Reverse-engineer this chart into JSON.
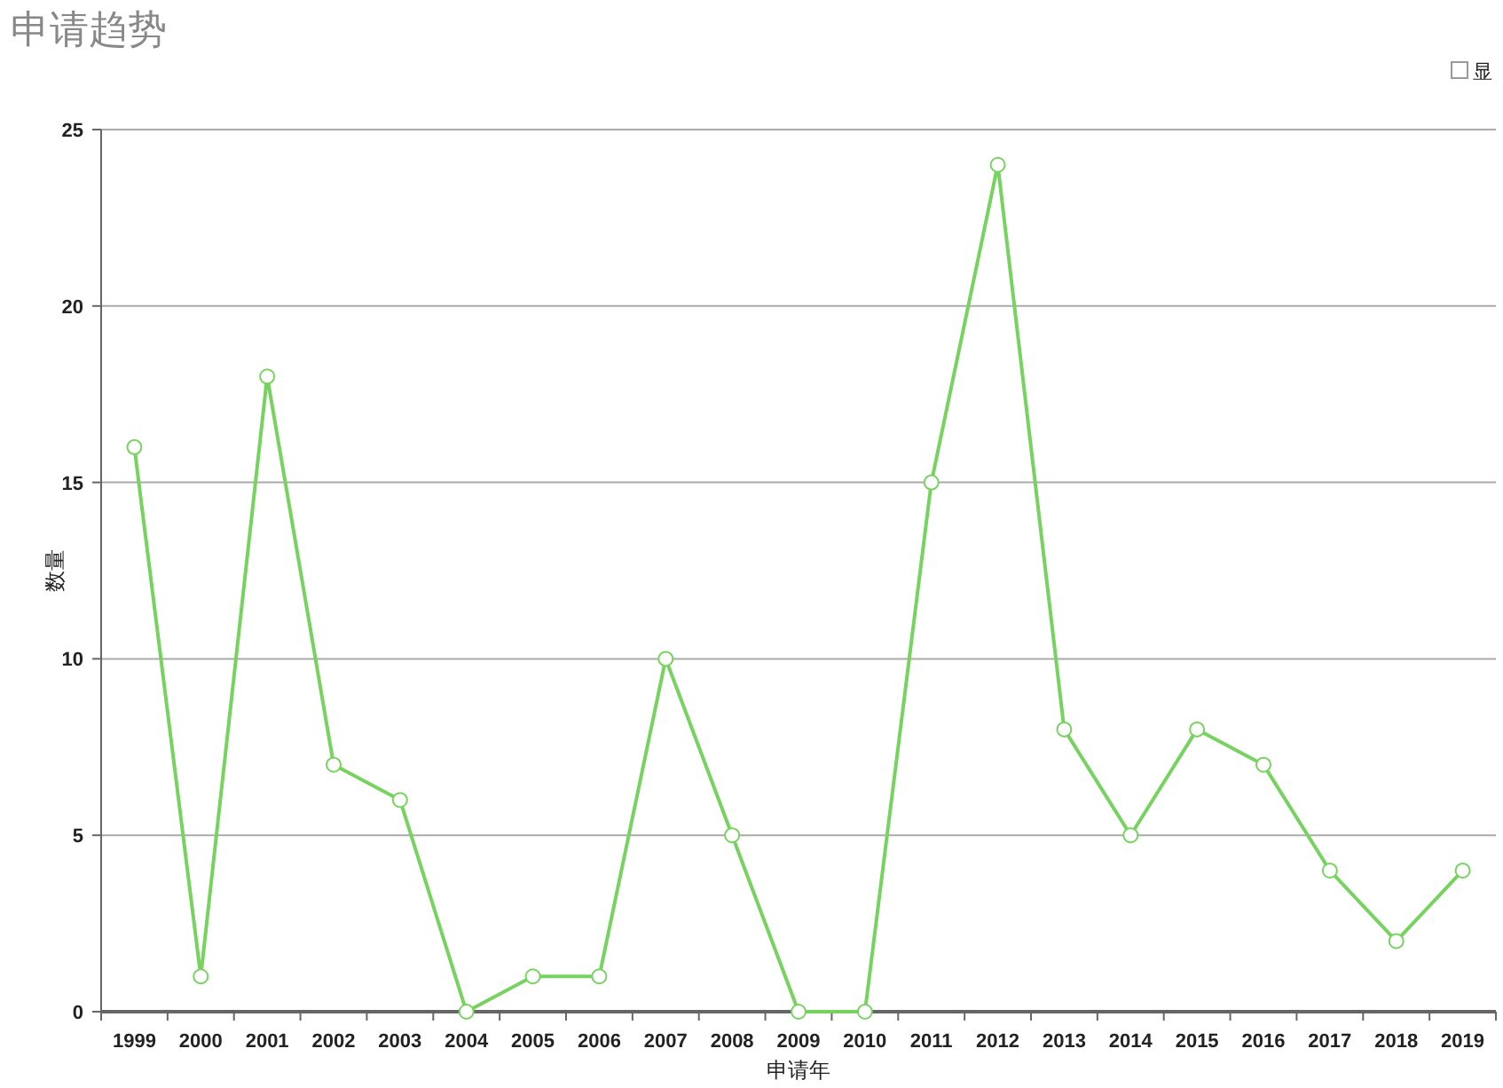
{
  "chart_data": {
    "type": "line",
    "title": "申请趋势",
    "xlabel": "申请年",
    "ylabel": "数量",
    "categories": [
      "1999",
      "2000",
      "2001",
      "2002",
      "2003",
      "2004",
      "2005",
      "2006",
      "2007",
      "2008",
      "2009",
      "2010",
      "2011",
      "2012",
      "2013",
      "2014",
      "2015",
      "2016",
      "2017",
      "2018",
      "2019"
    ],
    "series": [
      {
        "name": "显",
        "color": "#77d35f",
        "values": [
          16,
          1,
          18,
          7,
          6,
          0,
          1,
          1,
          10,
          5,
          0,
          0,
          15,
          24,
          8,
          5,
          8,
          7,
          4,
          2,
          4
        ]
      }
    ],
    "ylim": [
      0,
      25
    ],
    "yticks": [
      0,
      5,
      10,
      15,
      20,
      25
    ],
    "grid": "y",
    "legend": "top right",
    "marker": "circle"
  }
}
